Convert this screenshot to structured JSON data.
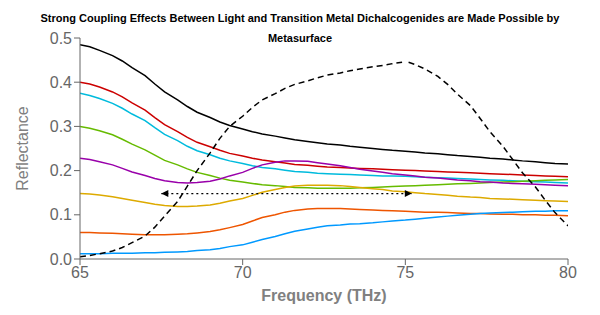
{
  "chart_data": {
    "type": "line",
    "title": "Strong Coupling Effects Between Light and Transition Metal Dichalcogenides are Made Possible by Metasurface",
    "xlabel": "Frequency (THz)",
    "ylabel": "Reflectance",
    "xlim": [
      65,
      80
    ],
    "ylim": [
      0,
      0.5
    ],
    "xticks": [
      65,
      70,
      75,
      80
    ],
    "yticks": [
      {
        "value": 0,
        "label": "0.0"
      },
      0.1,
      0.2,
      0.3,
      0.4,
      0.5
    ],
    "grid": false,
    "x": [
      65.0,
      65.3,
      65.6,
      66.0,
      66.3,
      66.6,
      67.0,
      67.3,
      67.6,
      68.0,
      68.3,
      68.6,
      69.0,
      69.3,
      69.6,
      70.0,
      70.3,
      70.6,
      71.0,
      71.3,
      71.6,
      72.0,
      72.3,
      72.6,
      73.0,
      73.3,
      73.6,
      74.0,
      74.3,
      74.6,
      75.0,
      75.3,
      75.6,
      76.0,
      76.3,
      76.6,
      77.0,
      77.3,
      77.6,
      78.0,
      78.3,
      78.6,
      79.0,
      79.3,
      79.6,
      80.0
    ],
    "series": [
      {
        "color": "#000000",
        "values": [
          0.485,
          0.48,
          0.472,
          0.46,
          0.448,
          0.433,
          0.415,
          0.396,
          0.378,
          0.36,
          0.345,
          0.332,
          0.32,
          0.31,
          0.302,
          0.294,
          0.288,
          0.283,
          0.278,
          0.274,
          0.27,
          0.266,
          0.263,
          0.26,
          0.258,
          0.255,
          0.253,
          0.25,
          0.248,
          0.246,
          0.244,
          0.242,
          0.24,
          0.238,
          0.236,
          0.234,
          0.232,
          0.23,
          0.228,
          0.226,
          0.224,
          0.222,
          0.22,
          0.218,
          0.216,
          0.215
        ]
      },
      {
        "color": "#cc0000",
        "values": [
          0.4,
          0.396,
          0.389,
          0.378,
          0.367,
          0.353,
          0.337,
          0.32,
          0.304,
          0.288,
          0.275,
          0.264,
          0.254,
          0.246,
          0.239,
          0.233,
          0.228,
          0.224,
          0.22,
          0.217,
          0.214,
          0.212,
          0.21,
          0.208,
          0.207,
          0.206,
          0.205,
          0.204,
          0.203,
          0.202,
          0.201,
          0.2,
          0.199,
          0.198,
          0.197,
          0.196,
          0.195,
          0.194,
          0.193,
          0.192,
          0.191,
          0.19,
          0.189,
          0.188,
          0.187,
          0.186
        ]
      },
      {
        "color": "#00bbdd",
        "values": [
          0.375,
          0.37,
          0.363,
          0.352,
          0.341,
          0.328,
          0.313,
          0.297,
          0.282,
          0.268,
          0.255,
          0.245,
          0.236,
          0.228,
          0.222,
          0.216,
          0.211,
          0.207,
          0.204,
          0.201,
          0.198,
          0.196,
          0.194,
          0.193,
          0.192,
          0.191,
          0.19,
          0.189,
          0.188,
          0.188,
          0.187,
          0.186,
          0.185,
          0.184,
          0.183,
          0.182,
          0.181,
          0.18,
          0.179,
          0.178,
          0.177,
          0.176,
          0.175,
          0.174,
          0.173,
          0.172
        ]
      },
      {
        "color": "#66bb00",
        "values": [
          0.3,
          0.296,
          0.29,
          0.281,
          0.271,
          0.26,
          0.247,
          0.235,
          0.223,
          0.213,
          0.204,
          0.196,
          0.189,
          0.183,
          0.178,
          0.174,
          0.171,
          0.168,
          0.166,
          0.164,
          0.162,
          0.161,
          0.16,
          0.16,
          0.16,
          0.16,
          0.161,
          0.162,
          0.163,
          0.164,
          0.165,
          0.166,
          0.167,
          0.168,
          0.169,
          0.17,
          0.171,
          0.172,
          0.173,
          0.174,
          0.175,
          0.176,
          0.177,
          0.178,
          0.179,
          0.18
        ]
      },
      {
        "color": "#9900aa",
        "values": [
          0.228,
          0.225,
          0.22,
          0.213,
          0.205,
          0.197,
          0.189,
          0.182,
          0.177,
          0.173,
          0.172,
          0.173,
          0.176,
          0.181,
          0.188,
          0.196,
          0.205,
          0.213,
          0.219,
          0.222,
          0.222,
          0.221,
          0.218,
          0.215,
          0.211,
          0.207,
          0.203,
          0.199,
          0.196,
          0.193,
          0.19,
          0.188,
          0.185,
          0.183,
          0.181,
          0.179,
          0.177,
          0.175,
          0.174,
          0.172,
          0.171,
          0.17,
          0.169,
          0.168,
          0.167,
          0.166
        ]
      },
      {
        "color": "#ddaa00",
        "values": [
          0.148,
          0.147,
          0.145,
          0.141,
          0.137,
          0.133,
          0.128,
          0.124,
          0.121,
          0.119,
          0.119,
          0.12,
          0.122,
          0.126,
          0.131,
          0.137,
          0.144,
          0.151,
          0.157,
          0.162,
          0.165,
          0.167,
          0.167,
          0.167,
          0.166,
          0.164,
          0.162,
          0.159,
          0.157,
          0.154,
          0.152,
          0.15,
          0.148,
          0.146,
          0.144,
          0.142,
          0.14,
          0.139,
          0.137,
          0.136,
          0.135,
          0.134,
          0.133,
          0.132,
          0.131,
          0.13
        ]
      },
      {
        "color": "#ee5500",
        "values": [
          0.06,
          0.06,
          0.059,
          0.058,
          0.057,
          0.056,
          0.055,
          0.055,
          0.055,
          0.056,
          0.057,
          0.059,
          0.062,
          0.066,
          0.071,
          0.078,
          0.086,
          0.094,
          0.1,
          0.106,
          0.11,
          0.113,
          0.114,
          0.114,
          0.114,
          0.113,
          0.112,
          0.111,
          0.11,
          0.109,
          0.108,
          0.107,
          0.106,
          0.106,
          0.105,
          0.104,
          0.103,
          0.103,
          0.102,
          0.101,
          0.101,
          0.1,
          0.1,
          0.099,
          0.099,
          0.098
        ]
      },
      {
        "color": "#0099ff",
        "values": [
          0.012,
          0.012,
          0.012,
          0.013,
          0.013,
          0.013,
          0.014,
          0.014,
          0.015,
          0.016,
          0.017,
          0.019,
          0.021,
          0.024,
          0.028,
          0.032,
          0.038,
          0.044,
          0.051,
          0.057,
          0.063,
          0.068,
          0.072,
          0.075,
          0.077,
          0.079,
          0.08,
          0.082,
          0.084,
          0.086,
          0.088,
          0.09,
          0.092,
          0.095,
          0.097,
          0.099,
          0.101,
          0.103,
          0.104,
          0.105,
          0.106,
          0.107,
          0.108,
          0.108,
          0.109,
          0.109
        ]
      },
      {
        "color": "#000000",
        "line_style": "dashed",
        "x": [
          65.0,
          65.3,
          65.6,
          66.0,
          66.3,
          66.6,
          67.0,
          67.3,
          67.6,
          68.0,
          68.3,
          68.6,
          69.0,
          69.3,
          69.6,
          70.0,
          70.3,
          70.6,
          71.0,
          71.3,
          71.6,
          72.0,
          72.3,
          72.6,
          73.0,
          73.3,
          73.6,
          74.0,
          74.3,
          74.6,
          74.9
        ],
        "values": [
          0.005,
          0.008,
          0.012,
          0.018,
          0.026,
          0.037,
          0.052,
          0.072,
          0.097,
          0.13,
          0.165,
          0.2,
          0.24,
          0.273,
          0.3,
          0.323,
          0.343,
          0.36,
          0.374,
          0.386,
          0.395,
          0.403,
          0.41,
          0.416,
          0.421,
          0.426,
          0.43,
          0.435,
          0.438,
          0.442,
          0.445
        ]
      },
      {
        "color": "#000000",
        "line_style": "dashed",
        "x": [
          75.1,
          75.3,
          75.6,
          76.0,
          76.3,
          76.6,
          77.0,
          77.3,
          77.6,
          78.0,
          78.3,
          78.6,
          79.0,
          79.3,
          79.6,
          80.0
        ],
        "values": [
          0.445,
          0.44,
          0.43,
          0.413,
          0.395,
          0.373,
          0.347,
          0.318,
          0.288,
          0.255,
          0.225,
          0.195,
          0.163,
          0.133,
          0.105,
          0.075
        ]
      }
    ],
    "arrow": {
      "x": [
        67.5,
        75.2
      ],
      "y": 0.148,
      "color": "#000000",
      "line_style": "dotted"
    }
  }
}
